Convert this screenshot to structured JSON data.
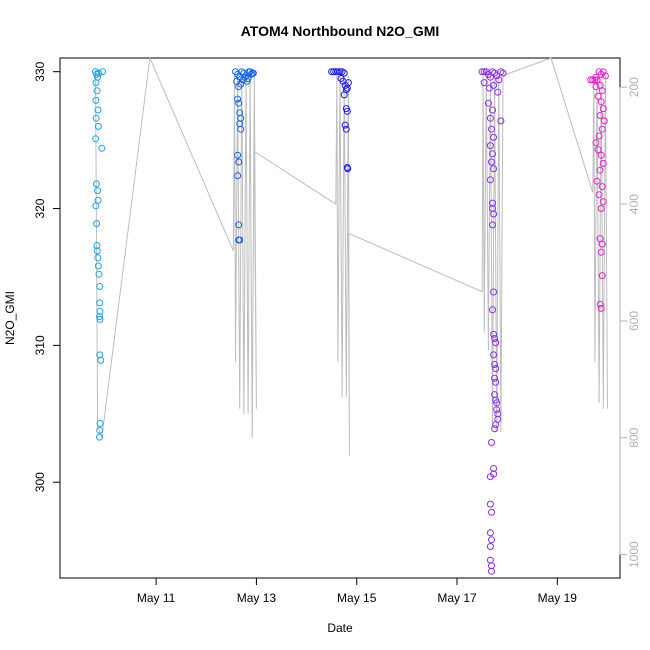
{
  "chart_data": {
    "type": "scatter",
    "title": "ATOM4 Northbound N2O_GMI",
    "xlabel": "Date",
    "ylabel": "N2O_GMI",
    "x_axis": {
      "kind": "date",
      "range": [
        "2018-05-09T02:00",
        "2018-05-20T06:00"
      ],
      "ticks": [
        {
          "date": "2018-05-11",
          "label": "May 11"
        },
        {
          "date": "2018-05-13",
          "label": "May 13"
        },
        {
          "date": "2018-05-15",
          "label": "May 15"
        },
        {
          "date": "2018-05-17",
          "label": "May 17"
        },
        {
          "date": "2018-05-19",
          "label": "May 19"
        }
      ]
    },
    "y_axis": {
      "range": [
        293,
        331
      ],
      "ticks": [
        300,
        310,
        320,
        330
      ]
    },
    "y2_axis": {
      "note": "pressure (inverted), shown in grey",
      "range": [
        1040,
        150
      ],
      "ticks": [
        200,
        400,
        600,
        800,
        1000
      ],
      "color": "#b0b0b0"
    },
    "series": [
      {
        "color": "#1aa3e8",
        "points": [
          [
            "2018-05-09T19:00",
            330.0
          ],
          [
            "2018-05-09T19:30",
            329.8
          ],
          [
            "2018-05-09T20:00",
            329.6
          ],
          [
            "2018-05-09T20:30",
            329.9
          ],
          [
            "2018-05-09T19:15",
            329.2
          ],
          [
            "2018-05-09T19:45",
            328.6
          ],
          [
            "2018-05-09T19:10",
            327.9
          ],
          [
            "2018-05-09T20:10",
            327.2
          ],
          [
            "2018-05-09T19:20",
            326.6
          ],
          [
            "2018-05-09T20:20",
            326.0
          ],
          [
            "2018-05-09T19:05",
            325.1
          ],
          [
            "2018-05-09T22:00",
            324.4
          ],
          [
            "2018-05-09T19:25",
            321.8
          ],
          [
            "2018-05-09T20:00",
            321.3
          ],
          [
            "2018-05-09T20:15",
            320.6
          ],
          [
            "2018-05-09T19:10",
            320.2
          ],
          [
            "2018-05-09T19:30",
            318.9
          ],
          [
            "2018-05-09T19:40",
            317.3
          ],
          [
            "2018-05-09T19:50",
            316.9
          ],
          [
            "2018-05-09T20:05",
            316.4
          ],
          [
            "2018-05-09T20:20",
            315.8
          ],
          [
            "2018-05-09T20:40",
            315.2
          ],
          [
            "2018-05-09T21:00",
            314.3
          ],
          [
            "2018-05-09T21:00",
            313.1
          ],
          [
            "2018-05-09T21:05",
            312.5
          ],
          [
            "2018-05-09T20:55",
            312.1
          ],
          [
            "2018-05-09T21:10",
            311.9
          ],
          [
            "2018-05-09T21:00",
            309.3
          ],
          [
            "2018-05-09T21:30",
            308.9
          ],
          [
            "2018-05-09T21:10",
            304.3
          ],
          [
            "2018-05-09T21:00",
            303.8
          ],
          [
            "2018-05-09T20:55",
            303.3
          ],
          [
            "2018-05-09T22:20",
            330.0
          ]
        ]
      },
      {
        "color": "#1463e8",
        "points": [
          [
            "2018-05-12T14:00",
            330.0
          ],
          [
            "2018-05-12T15:00",
            329.8
          ],
          [
            "2018-05-12T16:00",
            329.6
          ],
          [
            "2018-05-12T17:00",
            330.0
          ],
          [
            "2018-05-12T18:00",
            329.9
          ],
          [
            "2018-05-12T19:00",
            329.7
          ],
          [
            "2018-05-12T20:00",
            329.5
          ],
          [
            "2018-05-12T21:00",
            330.0
          ],
          [
            "2018-05-12T22:00",
            329.9
          ],
          [
            "2018-05-12T14:30",
            329.3
          ],
          [
            "2018-05-12T15:30",
            328.9
          ],
          [
            "2018-05-12T16:30",
            329.1
          ],
          [
            "2018-05-12T17:30",
            329.4
          ],
          [
            "2018-05-12T18:30",
            329.6
          ],
          [
            "2018-05-12T19:30",
            329.3
          ],
          [
            "2018-05-12T15:00",
            328.0
          ],
          [
            "2018-05-12T15:30",
            327.7
          ],
          [
            "2018-05-12T16:00",
            327.0
          ],
          [
            "2018-05-12T16:30",
            326.6
          ],
          [
            "2018-05-12T16:00",
            326.2
          ],
          [
            "2018-05-12T16:30",
            325.8
          ],
          [
            "2018-05-12T15:00",
            323.9
          ],
          [
            "2018-05-12T15:30",
            323.4
          ],
          [
            "2018-05-12T15:00",
            322.4
          ],
          [
            "2018-05-12T15:30",
            318.8
          ],
          [
            "2018-05-12T15:30",
            317.7
          ],
          [
            "2018-05-12T16:00",
            317.7
          ],
          [
            "2018-05-12T20:30",
            330.0
          ],
          [
            "2018-05-12T21:30",
            329.8
          ],
          [
            "2018-05-12T22:30",
            329.9
          ]
        ]
      },
      {
        "color": "#1a1aee",
        "points": [
          [
            "2018-05-14T12:00",
            330.0
          ],
          [
            "2018-05-14T13:00",
            330.0
          ],
          [
            "2018-05-14T14:00",
            330.0
          ],
          [
            "2018-05-14T15:00",
            330.0
          ],
          [
            "2018-05-14T16:00",
            330.0
          ],
          [
            "2018-05-14T17:00",
            330.0
          ],
          [
            "2018-05-14T18:00",
            329.9
          ],
          [
            "2018-05-14T16:30",
            329.5
          ],
          [
            "2018-05-14T17:30",
            329.3
          ],
          [
            "2018-05-14T18:30",
            329.0
          ],
          [
            "2018-05-14T19:00",
            328.7
          ],
          [
            "2018-05-14T18:00",
            328.3
          ],
          [
            "2018-05-14T19:30",
            328.8
          ],
          [
            "2018-05-14T19:00",
            327.3
          ],
          [
            "2018-05-14T19:30",
            327.1
          ],
          [
            "2018-05-14T18:30",
            326.1
          ],
          [
            "2018-05-14T19:00",
            325.8
          ],
          [
            "2018-05-14T19:30",
            323.0
          ],
          [
            "2018-05-14T19:40",
            322.9
          ],
          [
            "2018-05-14T20:00",
            329.2
          ]
        ]
      },
      {
        "color": "#8a2bef",
        "points": [
          [
            "2018-05-17T12:00",
            330.0
          ],
          [
            "2018-05-17T13:00",
            330.0
          ],
          [
            "2018-05-17T14:00",
            330.0
          ],
          [
            "2018-05-17T15:00",
            329.8
          ],
          [
            "2018-05-17T16:00",
            329.6
          ],
          [
            "2018-05-17T17:00",
            330.0
          ],
          [
            "2018-05-17T18:00",
            329.9
          ],
          [
            "2018-05-17T19:00",
            329.7
          ],
          [
            "2018-05-17T20:00",
            329.4
          ],
          [
            "2018-05-17T21:00",
            330.0
          ],
          [
            "2018-05-17T22:00",
            329.9
          ],
          [
            "2018-05-17T13:00",
            329.2
          ],
          [
            "2018-05-17T15:30",
            328.8
          ],
          [
            "2018-05-17T17:30",
            329.0
          ],
          [
            "2018-05-17T19:30",
            328.5
          ],
          [
            "2018-05-17T15:00",
            327.7
          ],
          [
            "2018-05-17T17:00",
            327.2
          ],
          [
            "2018-05-17T16:00",
            326.6
          ],
          [
            "2018-05-17T21:00",
            326.4
          ],
          [
            "2018-05-17T16:30",
            325.8
          ],
          [
            "2018-05-17T17:30",
            325.2
          ],
          [
            "2018-05-17T16:00",
            324.6
          ],
          [
            "2018-05-17T17:00",
            324.0
          ],
          [
            "2018-05-17T16:30",
            323.4
          ],
          [
            "2018-05-17T17:30",
            322.9
          ],
          [
            "2018-05-17T16:00",
            322.1
          ],
          [
            "2018-05-17T17:00",
            320.4
          ],
          [
            "2018-05-17T17:00",
            320.0
          ],
          [
            "2018-05-17T17:30",
            319.6
          ],
          [
            "2018-05-17T17:00",
            318.8
          ],
          [
            "2018-05-17T17:30",
            313.9
          ],
          [
            "2018-05-17T17:00",
            312.6
          ],
          [
            "2018-05-17T17:30",
            310.8
          ],
          [
            "2018-05-17T18:00",
            310.5
          ],
          [
            "2018-05-17T18:30",
            310.2
          ],
          [
            "2018-05-17T17:30",
            309.3
          ],
          [
            "2018-05-17T18:00",
            308.6
          ],
          [
            "2018-05-17T18:30",
            308.3
          ],
          [
            "2018-05-17T18:00",
            307.6
          ],
          [
            "2018-05-17T18:30",
            307.3
          ],
          [
            "2018-05-17T18:00",
            306.4
          ],
          [
            "2018-05-17T18:30",
            306.0
          ],
          [
            "2018-05-17T19:00",
            305.8
          ],
          [
            "2018-05-17T19:00",
            305.3
          ],
          [
            "2018-05-17T19:30",
            305.0
          ],
          [
            "2018-05-17T19:30",
            304.6
          ],
          [
            "2018-05-17T18:30",
            304.2
          ],
          [
            "2018-05-17T18:00",
            303.9
          ],
          [
            "2018-05-17T17:30",
            301.0
          ],
          [
            "2018-05-17T17:30",
            300.6
          ],
          [
            "2018-05-17T16:30",
            302.9
          ],
          [
            "2018-05-17T16:00",
            300.4
          ],
          [
            "2018-05-17T16:00",
            298.4
          ],
          [
            "2018-05-17T16:30",
            297.8
          ],
          [
            "2018-05-17T16:00",
            296.3
          ],
          [
            "2018-05-17T16:30",
            295.8
          ],
          [
            "2018-05-17T16:00",
            295.3
          ],
          [
            "2018-05-17T16:00",
            294.3
          ],
          [
            "2018-05-17T16:30",
            293.9
          ],
          [
            "2018-05-17T16:30",
            293.5
          ]
        ]
      },
      {
        "color": "#e81ec8",
        "points": [
          [
            "2018-05-19T16:00",
            329.4
          ],
          [
            "2018-05-19T17:00",
            329.4
          ],
          [
            "2018-05-19T18:00",
            329.4
          ],
          [
            "2018-05-19T19:00",
            329.4
          ],
          [
            "2018-05-19T20:00",
            330.0
          ],
          [
            "2018-05-19T21:00",
            329.8
          ],
          [
            "2018-05-19T22:00",
            330.0
          ],
          [
            "2018-05-19T23:00",
            329.7
          ],
          [
            "2018-05-19T18:30",
            328.9
          ],
          [
            "2018-05-19T20:30",
            329.0
          ],
          [
            "2018-05-19T21:30",
            328.6
          ],
          [
            "2018-05-19T19:30",
            328.2
          ],
          [
            "2018-05-19T21:00",
            327.8
          ],
          [
            "2018-05-19T22:00",
            327.3
          ],
          [
            "2018-05-19T20:30",
            326.8
          ],
          [
            "2018-05-19T22:30",
            326.4
          ],
          [
            "2018-05-19T21:30",
            325.8
          ],
          [
            "2018-05-19T20:00",
            325.3
          ],
          [
            "2018-05-19T18:30",
            324.8
          ],
          [
            "2018-05-19T19:30",
            324.3
          ],
          [
            "2018-05-19T21:00",
            323.9
          ],
          [
            "2018-05-19T22:00",
            323.3
          ],
          [
            "2018-05-19T20:30",
            322.8
          ],
          [
            "2018-05-19T19:00",
            322.0
          ],
          [
            "2018-05-19T21:30",
            321.6
          ],
          [
            "2018-05-19T20:00",
            321.0
          ],
          [
            "2018-05-19T22:00",
            320.5
          ],
          [
            "2018-05-19T21:00",
            320.0
          ],
          [
            "2018-05-19T20:30",
            317.8
          ],
          [
            "2018-05-19T21:30",
            317.4
          ],
          [
            "2018-05-19T21:00",
            316.8
          ],
          [
            "2018-05-19T21:30",
            315.1
          ],
          [
            "2018-05-19T20:30",
            313.0
          ],
          [
            "2018-05-19T21:00",
            312.7
          ],
          [
            "2018-05-19T18:30",
            329.6
          ]
        ]
      }
    ],
    "pressure_profiles": [
      {
        "color": "#bdbdbd",
        "points": [
          [
            "2018-05-09T19:00",
            170
          ],
          [
            "2018-05-09T20:00",
            780
          ],
          [
            "2018-05-09T21:00",
            790
          ],
          [
            "2018-05-09T22:00",
            800
          ],
          [
            "2018-05-10T21:00",
            150
          ],
          [
            "2018-05-12T13:00",
            480
          ],
          [
            "2018-05-12T13:30",
            180
          ],
          [
            "2018-05-12T14:00",
            670
          ],
          [
            "2018-05-12T15:00",
            180
          ],
          [
            "2018-05-12T16:00",
            750
          ],
          [
            "2018-05-12T17:00",
            180
          ],
          [
            "2018-05-12T18:00",
            760
          ],
          [
            "2018-05-12T19:00",
            180
          ],
          [
            "2018-05-12T20:00",
            760
          ],
          [
            "2018-05-12T21:00",
            180
          ],
          [
            "2018-05-12T22:00",
            800
          ],
          [
            "2018-05-12T23:00",
            180
          ],
          [
            "2018-05-13T00:00",
            750
          ],
          [
            "2018-05-12T23:00",
            310
          ],
          [
            "2018-05-14T14:00",
            400
          ],
          [
            "2018-05-14T14:30",
            180
          ],
          [
            "2018-05-14T15:00",
            670
          ],
          [
            "2018-05-14T16:00",
            180
          ],
          [
            "2018-05-14T17:00",
            730
          ],
          [
            "2018-05-14T18:00",
            180
          ],
          [
            "2018-05-14T19:00",
            730
          ],
          [
            "2018-05-14T20:00",
            180
          ],
          [
            "2018-05-14T20:30",
            830
          ],
          [
            "2018-05-14T20:00",
            450
          ],
          [
            "2018-05-17T12:00",
            550
          ],
          [
            "2018-05-17T12:30",
            180
          ],
          [
            "2018-05-17T13:00",
            620
          ],
          [
            "2018-05-17T14:00",
            180
          ],
          [
            "2018-05-17T15:00",
            650
          ],
          [
            "2018-05-17T16:00",
            180
          ],
          [
            "2018-05-17T17:00",
            780
          ],
          [
            "2018-05-17T18:00",
            180
          ],
          [
            "2018-05-17T19:00",
            790
          ],
          [
            "2018-05-17T20:00",
            180
          ],
          [
            "2018-05-17T21:00",
            790
          ],
          [
            "2018-05-17T22:00",
            180
          ],
          [
            "2018-05-18T21:00",
            150
          ],
          [
            "2018-05-19T17:00",
            380
          ],
          [
            "2018-05-19T17:30",
            180
          ],
          [
            "2018-05-19T18:00",
            670
          ],
          [
            "2018-05-19T19:00",
            180
          ],
          [
            "2018-05-19T20:00",
            740
          ],
          [
            "2018-05-19T21:00",
            180
          ],
          [
            "2018-05-19T22:00",
            750
          ],
          [
            "2018-05-19T23:00",
            180
          ],
          [
            "2018-05-20T00:00",
            750
          ]
        ]
      }
    ]
  }
}
